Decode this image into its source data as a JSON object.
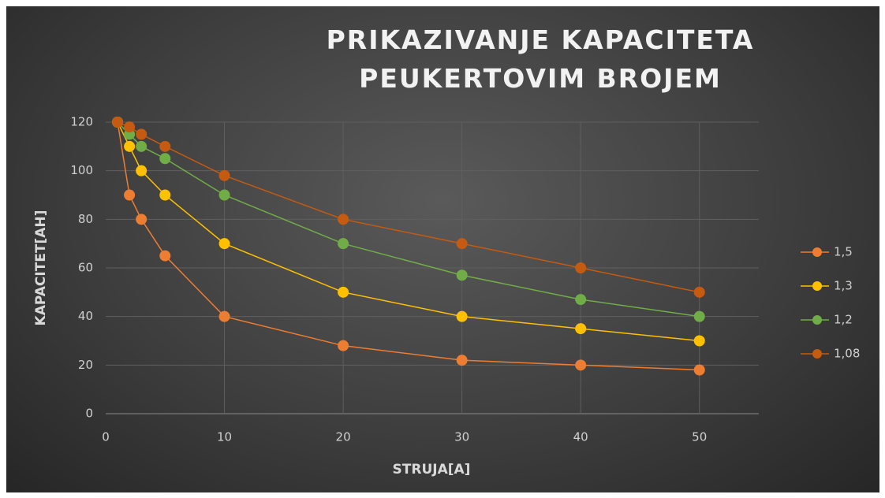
{
  "chart_data": {
    "type": "scatter_line",
    "title": "PRIKAZIVANJE KAPACITETA PEUKERTOVIM BROJEM",
    "x_label": "STRUJA[A]",
    "y_label": "KAPACITET[AH]",
    "x": [
      1,
      2,
      3,
      5,
      10,
      20,
      30,
      40,
      50
    ],
    "series": [
      {
        "name": "1,5",
        "color": "#ed7d31",
        "values": [
          120,
          90,
          80,
          65,
          40,
          28,
          22,
          20,
          18
        ]
      },
      {
        "name": "1,3",
        "color": "#ffc000",
        "values": [
          120,
          110,
          100,
          90,
          70,
          50,
          40,
          35,
          30
        ]
      },
      {
        "name": "1,2",
        "color": "#70ad47",
        "values": [
          120,
          115,
          110,
          105,
          90,
          70,
          57,
          47,
          40
        ]
      },
      {
        "name": "1,08",
        "color": "#c55a11",
        "values": [
          120,
          118,
          115,
          110,
          98,
          80,
          70,
          60,
          50
        ]
      }
    ],
    "xlim": [
      0,
      55
    ],
    "xticks": [
      0,
      10,
      20,
      30,
      40,
      50
    ],
    "ylim": [
      0,
      120
    ],
    "yticks": [
      0,
      20,
      40,
      60,
      80,
      100,
      120
    ],
    "grid": true,
    "legend": "right"
  }
}
